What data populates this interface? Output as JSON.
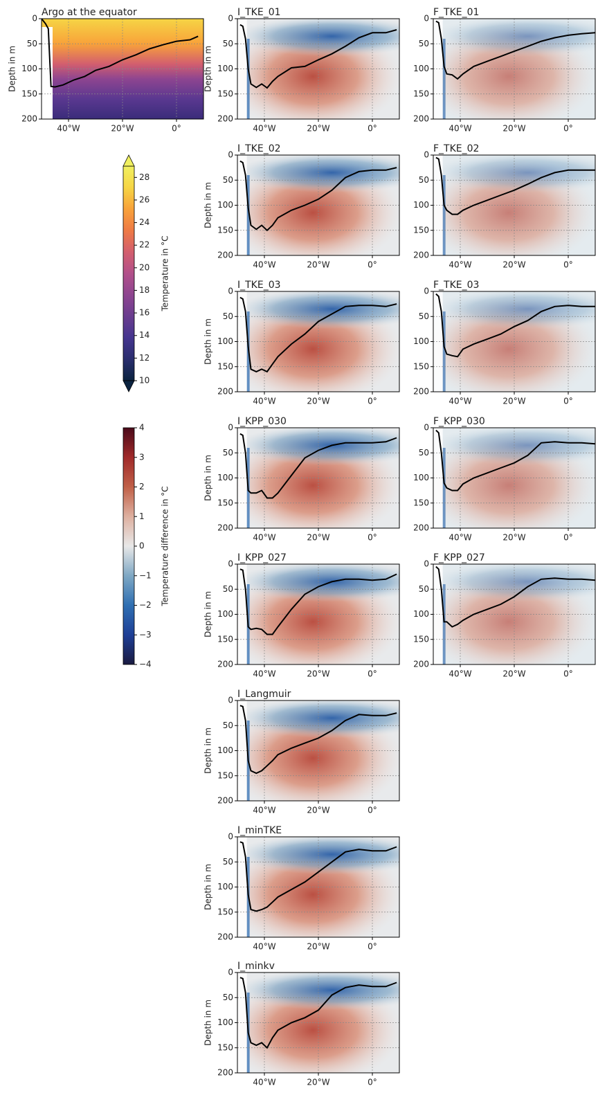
{
  "chart_data": [
    {
      "type": "contour",
      "field": "temperature",
      "title": "Argo at the equator",
      "ylabel": "Depth in m",
      "xlim": [
        -50,
        10
      ],
      "ylim": [
        0,
        200
      ],
      "y_inverted": true,
      "grid": true,
      "line_color": "#000000",
      "xticks": [
        {
          "value": -40,
          "label": "40°W"
        },
        {
          "value": -20,
          "label": "20°W"
        },
        {
          "value": 0,
          "label": "0°"
        }
      ],
      "yticks": [
        0,
        50,
        100,
        150,
        200
      ],
      "x": [
        -50,
        -48.5,
        -47.5,
        -46.5,
        -45,
        -42,
        -38,
        -34,
        -30,
        -25,
        -20,
        -15,
        -10,
        -5,
        0,
        5,
        8
      ],
      "values": [
        0,
        10,
        20,
        135,
        136,
        132,
        122,
        115,
        103,
        95,
        82,
        72,
        60,
        52,
        45,
        42,
        35
      ]
    },
    {
      "type": "contour",
      "field": "difference",
      "title": "I_TKE_01",
      "ylabel": "Depth in m",
      "xlim": [
        -50,
        10
      ],
      "ylim": [
        0,
        200
      ],
      "y_inverted": true,
      "grid": true,
      "line_color": "#000000",
      "xticks": [
        {
          "value": -40,
          "label": "40°W"
        },
        {
          "value": -20,
          "label": "20°W"
        },
        {
          "value": 0,
          "label": "0°"
        }
      ],
      "yticks": [
        0,
        50,
        100,
        150,
        200
      ],
      "x": [
        -49,
        -48,
        -47,
        -46,
        -45,
        -43,
        -41,
        -39,
        -37,
        -35,
        -30,
        -25,
        -20,
        -15,
        -10,
        -5,
        0,
        5,
        9
      ],
      "values": [
        12,
        15,
        40,
        100,
        130,
        137,
        130,
        138,
        125,
        115,
        98,
        95,
        82,
        70,
        55,
        38,
        28,
        28,
        22
      ]
    },
    {
      "type": "contour",
      "field": "difference",
      "title": "F_TKE_01",
      "xlim": [
        -50,
        10
      ],
      "ylim": [
        0,
        200
      ],
      "y_inverted": true,
      "grid": true,
      "line_color": "#000000",
      "xticks": [
        {
          "value": -40,
          "label": "40°W"
        },
        {
          "value": -20,
          "label": "20°W"
        },
        {
          "value": 0,
          "label": "0°"
        }
      ],
      "yticks": [
        0,
        50,
        100,
        150,
        200
      ],
      "x": [
        -49,
        -48,
        -47,
        -46,
        -45,
        -43,
        -41,
        -39,
        -35,
        -30,
        -25,
        -20,
        -15,
        -10,
        -5,
        0,
        5,
        10
      ],
      "values": [
        5,
        8,
        40,
        95,
        110,
        112,
        120,
        110,
        95,
        85,
        75,
        65,
        55,
        45,
        38,
        33,
        30,
        28
      ]
    },
    {
      "type": "contour",
      "field": "difference",
      "title": "I_TKE_02",
      "ylabel": "Depth in m",
      "xlim": [
        -50,
        10
      ],
      "ylim": [
        0,
        200
      ],
      "y_inverted": true,
      "grid": true,
      "line_color": "#000000",
      "xticks": [
        {
          "value": -40,
          "label": "40°W"
        },
        {
          "value": -20,
          "label": "20°W"
        },
        {
          "value": 0,
          "label": "0°"
        }
      ],
      "yticks": [
        0,
        50,
        100,
        150,
        200
      ],
      "x": [
        -49,
        -48,
        -47,
        -46,
        -45,
        -43,
        -41,
        -39,
        -37,
        -35,
        -30,
        -25,
        -20,
        -15,
        -10,
        -5,
        0,
        5,
        9
      ],
      "values": [
        12,
        15,
        40,
        105,
        140,
        148,
        140,
        150,
        140,
        125,
        110,
        100,
        88,
        70,
        45,
        33,
        30,
        30,
        25
      ]
    },
    {
      "type": "contour",
      "field": "difference",
      "title": "F_TKE_02",
      "xlim": [
        -50,
        10
      ],
      "ylim": [
        0,
        200
      ],
      "y_inverted": true,
      "grid": true,
      "line_color": "#000000",
      "xticks": [
        {
          "value": -40,
          "label": "40°W"
        },
        {
          "value": -20,
          "label": "20°W"
        },
        {
          "value": 0,
          "label": "0°"
        }
      ],
      "yticks": [
        0,
        50,
        100,
        150,
        200
      ],
      "x": [
        -49,
        -48,
        -47,
        -46,
        -45,
        -43,
        -41,
        -39,
        -35,
        -30,
        -25,
        -20,
        -15,
        -10,
        -5,
        0,
        5,
        10
      ],
      "values": [
        5,
        8,
        40,
        100,
        110,
        118,
        118,
        110,
        100,
        90,
        80,
        70,
        58,
        45,
        35,
        30,
        30,
        30
      ]
    },
    {
      "type": "contour",
      "field": "difference",
      "title": "I_TKE_03",
      "ylabel": "Depth in m",
      "xlim": [
        -50,
        10
      ],
      "ylim": [
        0,
        200
      ],
      "y_inverted": true,
      "grid": true,
      "line_color": "#000000",
      "xticks": [
        {
          "value": -40,
          "label": "40°W"
        },
        {
          "value": -20,
          "label": "20°W"
        },
        {
          "value": 0,
          "label": "0°"
        }
      ],
      "yticks": [
        0,
        50,
        100,
        150,
        200
      ],
      "x": [
        -49,
        -48,
        -47,
        -46,
        -45,
        -43,
        -41,
        -39,
        -37,
        -35,
        -30,
        -25,
        -20,
        -15,
        -10,
        -5,
        0,
        5,
        9
      ],
      "values": [
        12,
        15,
        40,
        110,
        155,
        160,
        155,
        160,
        145,
        130,
        105,
        85,
        60,
        45,
        30,
        28,
        28,
        30,
        25
      ]
    },
    {
      "type": "contour",
      "field": "difference",
      "title": "F_TKE_03",
      "xlim": [
        -50,
        10
      ],
      "ylim": [
        0,
        200
      ],
      "y_inverted": true,
      "grid": true,
      "line_color": "#000000",
      "xticks": [
        {
          "value": -40,
          "label": "40°W"
        },
        {
          "value": -20,
          "label": "20°W"
        },
        {
          "value": 0,
          "label": "0°"
        }
      ],
      "yticks": [
        0,
        50,
        100,
        150,
        200
      ],
      "x": [
        -49,
        -48,
        -47,
        -46,
        -45,
        -43,
        -41,
        -39,
        -35,
        -30,
        -25,
        -20,
        -15,
        -10,
        -5,
        0,
        5,
        10
      ],
      "values": [
        5,
        10,
        40,
        110,
        125,
        128,
        130,
        115,
        105,
        95,
        85,
        70,
        58,
        40,
        30,
        28,
        30,
        30
      ]
    },
    {
      "type": "contour",
      "field": "difference",
      "title": "I_KPP_030",
      "ylabel": "Depth in m",
      "xlim": [
        -50,
        10
      ],
      "ylim": [
        0,
        200
      ],
      "y_inverted": true,
      "grid": true,
      "line_color": "#000000",
      "xticks": [
        {
          "value": -40,
          "label": "40°W"
        },
        {
          "value": -20,
          "label": "20°W"
        },
        {
          "value": 0,
          "label": "0°"
        }
      ],
      "yticks": [
        0,
        50,
        100,
        150,
        200
      ],
      "x": [
        -49,
        -48,
        -47,
        -46,
        -45,
        -43,
        -41,
        -39,
        -37,
        -35,
        -30,
        -25,
        -20,
        -15,
        -10,
        -5,
        0,
        5,
        9
      ],
      "values": [
        12,
        15,
        50,
        125,
        130,
        130,
        125,
        140,
        140,
        130,
        95,
        60,
        45,
        35,
        30,
        30,
        30,
        28,
        20
      ]
    },
    {
      "type": "contour",
      "field": "difference",
      "title": "F_KPP_030",
      "xlim": [
        -50,
        10
      ],
      "ylim": [
        0,
        200
      ],
      "y_inverted": true,
      "grid": true,
      "line_color": "#000000",
      "xticks": [
        {
          "value": -40,
          "label": "40°W"
        },
        {
          "value": -20,
          "label": "20°W"
        },
        {
          "value": 0,
          "label": "0°"
        }
      ],
      "yticks": [
        0,
        50,
        100,
        150,
        200
      ],
      "x": [
        -49,
        -48,
        -47,
        -46,
        -45,
        -43,
        -41,
        -39,
        -35,
        -30,
        -25,
        -20,
        -15,
        -10,
        -5,
        0,
        5,
        10
      ],
      "values": [
        5,
        10,
        50,
        110,
        120,
        125,
        125,
        112,
        100,
        90,
        80,
        70,
        55,
        30,
        28,
        30,
        30,
        32
      ]
    },
    {
      "type": "contour",
      "field": "difference",
      "title": "I_KPP_027",
      "ylabel": "Depth in m",
      "xlim": [
        -50,
        10
      ],
      "ylim": [
        0,
        200
      ],
      "y_inverted": true,
      "grid": true,
      "line_color": "#000000",
      "xticks": [
        {
          "value": -40,
          "label": "40°W"
        },
        {
          "value": -20,
          "label": "20°W"
        },
        {
          "value": 0,
          "label": "0°"
        }
      ],
      "yticks": [
        0,
        50,
        100,
        150,
        200
      ],
      "x": [
        -49,
        -48,
        -47,
        -46,
        -45,
        -43,
        -41,
        -39,
        -37,
        -35,
        -30,
        -25,
        -20,
        -15,
        -10,
        -5,
        0,
        5,
        9
      ],
      "values": [
        10,
        12,
        50,
        125,
        130,
        128,
        130,
        140,
        140,
        125,
        90,
        60,
        45,
        35,
        30,
        30,
        32,
        30,
        20
      ]
    },
    {
      "type": "contour",
      "field": "difference",
      "title": "F_KPP_027",
      "xlim": [
        -50,
        10
      ],
      "ylim": [
        0,
        200
      ],
      "y_inverted": true,
      "grid": true,
      "line_color": "#000000",
      "xticks": [
        {
          "value": -40,
          "label": "40°W"
        },
        {
          "value": -20,
          "label": "20°W"
        },
        {
          "value": 0,
          "label": "0°"
        }
      ],
      "yticks": [
        0,
        50,
        100,
        150,
        200
      ],
      "x": [
        -49,
        -48,
        -47,
        -46,
        -45,
        -43,
        -41,
        -39,
        -35,
        -30,
        -25,
        -20,
        -15,
        -10,
        -5,
        0,
        5,
        10
      ],
      "values": [
        5,
        10,
        50,
        115,
        115,
        125,
        120,
        112,
        100,
        90,
        80,
        65,
        45,
        30,
        28,
        30,
        30,
        32
      ]
    },
    {
      "type": "contour",
      "field": "difference",
      "title": "I_Langmuir",
      "ylabel": "Depth in m",
      "xlim": [
        -50,
        10
      ],
      "ylim": [
        0,
        200
      ],
      "y_inverted": true,
      "grid": true,
      "line_color": "#000000",
      "xticks": [
        {
          "value": -40,
          "label": "40°W"
        },
        {
          "value": -20,
          "label": "20°W"
        },
        {
          "value": 0,
          "label": "0°"
        }
      ],
      "yticks": [
        0,
        50,
        100,
        150,
        200
      ],
      "x": [
        -49,
        -48,
        -47,
        -46,
        -45,
        -43,
        -41,
        -39,
        -37,
        -35,
        -30,
        -25,
        -20,
        -15,
        -10,
        -5,
        0,
        5,
        9
      ],
      "values": [
        10,
        12,
        40,
        120,
        140,
        145,
        140,
        130,
        120,
        108,
        95,
        85,
        75,
        60,
        40,
        28,
        30,
        30,
        25
      ]
    },
    {
      "type": "contour",
      "field": "difference",
      "title": "I_minTKE",
      "ylabel": "Depth in m",
      "xlim": [
        -50,
        10
      ],
      "ylim": [
        0,
        200
      ],
      "y_inverted": true,
      "grid": true,
      "line_color": "#000000",
      "xticks": [
        {
          "value": -40,
          "label": "40°W"
        },
        {
          "value": -20,
          "label": "20°W"
        },
        {
          "value": 0,
          "label": "0°"
        }
      ],
      "yticks": [
        0,
        50,
        100,
        150,
        200
      ],
      "x": [
        -49,
        -48,
        -47,
        -46,
        -45,
        -43,
        -41,
        -39,
        -37,
        -35,
        -30,
        -25,
        -20,
        -15,
        -10,
        -5,
        0,
        5,
        9
      ],
      "values": [
        10,
        12,
        40,
        115,
        145,
        148,
        145,
        140,
        130,
        120,
        105,
        90,
        70,
        50,
        30,
        25,
        28,
        28,
        20
      ]
    },
    {
      "type": "contour",
      "field": "difference",
      "title": "I_minkv",
      "ylabel": "Depth in m",
      "xlim": [
        -50,
        10
      ],
      "ylim": [
        0,
        200
      ],
      "y_inverted": true,
      "grid": true,
      "line_color": "#000000",
      "xticks": [
        {
          "value": -40,
          "label": "40°W"
        },
        {
          "value": -20,
          "label": "20°W"
        },
        {
          "value": 0,
          "label": "0°"
        }
      ],
      "yticks": [
        0,
        50,
        100,
        150,
        200
      ],
      "x": [
        -49,
        -48,
        -47,
        -46,
        -45,
        -43,
        -41,
        -39,
        -37,
        -35,
        -30,
        -25,
        -20,
        -15,
        -10,
        -5,
        0,
        5,
        9
      ],
      "values": [
        10,
        12,
        40,
        120,
        140,
        145,
        140,
        150,
        130,
        115,
        100,
        90,
        75,
        45,
        30,
        25,
        28,
        28,
        20
      ]
    },
    {
      "type": "colorbar",
      "label": "Temperature in °C",
      "ylim": [
        10,
        29
      ],
      "extend": true,
      "yticks": [
        10,
        12,
        14,
        16,
        18,
        20,
        22,
        24,
        26,
        28
      ],
      "colors": [
        "#0b2340",
        "#2a2e6e",
        "#45358f",
        "#6a3d8f",
        "#8e4590",
        "#b2508a",
        "#d35f6e",
        "#ee7a45",
        "#f8a23a",
        "#f6d545",
        "#f0f060"
      ]
    },
    {
      "type": "colorbar",
      "label": "Temperature difference in °C",
      "ylim": [
        -4,
        4
      ],
      "extend": false,
      "yticks": [
        {
          "value": -4,
          "label": "−4"
        },
        {
          "value": -3,
          "label": "−3"
        },
        {
          "value": -2,
          "label": "−2"
        },
        {
          "value": -1,
          "label": "−1"
        },
        0,
        1,
        2,
        3,
        4
      ],
      "colors": [
        "#1a1a40",
        "#1e3f96",
        "#2f6fb2",
        "#7fa8c4",
        "#e8e8e8",
        "#deb0a0",
        "#c06048",
        "#a02a2a",
        "#4a0a1a"
      ]
    }
  ]
}
